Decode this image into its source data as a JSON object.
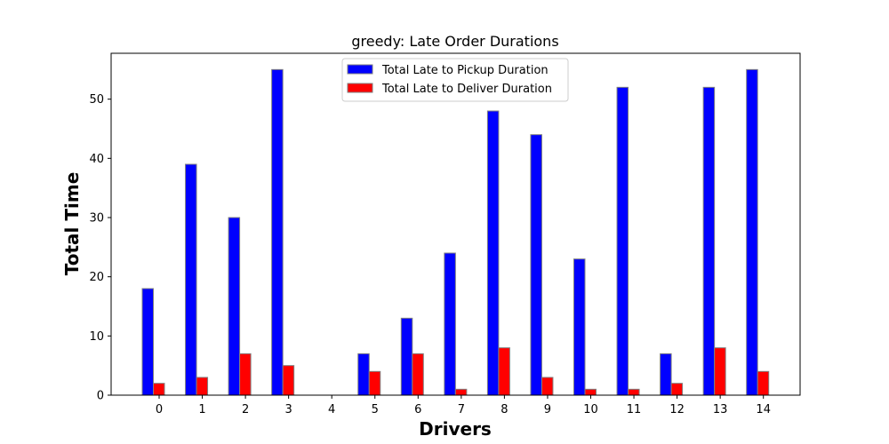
{
  "chart_data": {
    "type": "bar",
    "title": "greedy: Late Order Durations",
    "xlabel": "Drivers",
    "ylabel": "Total Time",
    "categories": [
      "0",
      "1",
      "2",
      "3",
      "4",
      "5",
      "6",
      "7",
      "8",
      "9",
      "10",
      "11",
      "12",
      "13",
      "14"
    ],
    "series": [
      {
        "name": "Total Late to Pickup Duration",
        "color": "#0000ff",
        "values": [
          18,
          39,
          30,
          55,
          0,
          7,
          13,
          24,
          48,
          44,
          23,
          52,
          7,
          52,
          55
        ]
      },
      {
        "name": "Total Late to Deliver Duration",
        "color": "#ff0000",
        "values": [
          2,
          3,
          7,
          5,
          0,
          4,
          7,
          1,
          8,
          3,
          1,
          1,
          2,
          8,
          4
        ]
      }
    ],
    "ylim": [
      0,
      57.75
    ],
    "yticks": [
      0,
      10,
      20,
      30,
      40,
      50
    ],
    "legend_position": "top-center",
    "grid": false,
    "bar_edge_color": "#808080"
  }
}
